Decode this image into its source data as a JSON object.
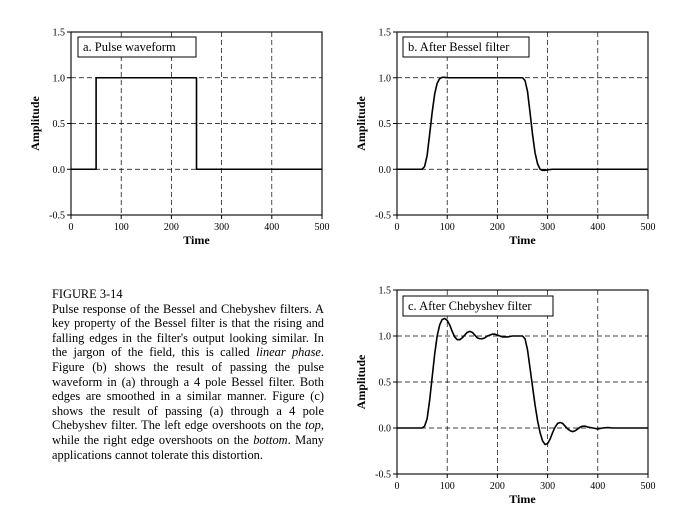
{
  "caption": {
    "figure_label": "FIGURE 3-14",
    "segments": [
      {
        "t": "Pulse response of the Bessel and Chebyshev filters. A key property of the Bessel filter is that the rising and falling edges in the filter's output looking similar. In the jargon of the field, this is called "
      },
      {
        "t": "linear phase",
        "i": true
      },
      {
        "t": ".  Figure (b) shows the result of passing the pulse waveform in (a) through a 4 pole Bessel filter.  Both edges are smoothed in a similar manner.  Figure (c) shows the result of passing (a) through a 4 pole Chebyshev filter. The left edge overshoots on the "
      },
      {
        "t": "top",
        "i": true
      },
      {
        "t": ", while the right edge overshoots on the "
      },
      {
        "t": "bottom",
        "i": true
      },
      {
        "t": ". Many applications cannot tolerate this distortion."
      }
    ]
  },
  "chart_data": [
    {
      "type": "line",
      "title": "a.  Pulse waveform",
      "xlabel": "Time",
      "ylabel": "Amplitude",
      "xlim": [
        0,
        500
      ],
      "ylim": [
        -0.5,
        1.5
      ],
      "xticks": [
        "0",
        "100",
        "200",
        "300",
        "400",
        "500"
      ],
      "yticks": [
        "-0.5",
        "0.0",
        "0.5",
        "1.0",
        "1.5"
      ],
      "grid": true,
      "series": [
        {
          "x": [
            0,
            50,
            50,
            250,
            250,
            500
          ],
          "y": [
            0,
            0,
            1,
            1,
            0,
            0
          ]
        }
      ]
    },
    {
      "type": "line",
      "title": "b.  After Bessel filter",
      "xlabel": "Time",
      "ylabel": "Amplitude",
      "xlim": [
        0,
        500
      ],
      "ylim": [
        -0.5,
        1.5
      ],
      "xticks": [
        "0",
        "100",
        "200",
        "300",
        "400",
        "500"
      ],
      "yticks": [
        "-0.5",
        "0.0",
        "0.5",
        "1.0",
        "1.5"
      ],
      "grid": true,
      "series": [
        {
          "x": [
            0,
            50,
            55,
            60,
            65,
            70,
            75,
            80,
            85,
            90,
            95,
            100,
            105,
            110,
            250,
            255,
            260,
            265,
            270,
            275,
            280,
            285,
            290,
            295,
            300,
            310,
            320,
            500
          ],
          "y": [
            0,
            0,
            0.03,
            0.15,
            0.38,
            0.62,
            0.82,
            0.94,
            0.99,
            1.005,
            1.005,
            1.0,
            1.0,
            1.0,
            1.0,
            0.97,
            0.85,
            0.62,
            0.38,
            0.18,
            0.06,
            0.0,
            -0.012,
            -0.012,
            -0.006,
            0,
            0,
            0
          ]
        }
      ]
    },
    {
      "type": "line",
      "title": "c.  After Chebyshev filter",
      "xlabel": "Time",
      "ylabel": "Amplitude",
      "xlim": [
        0,
        500
      ],
      "ylim": [
        -0.5,
        1.5
      ],
      "xticks": [
        "0",
        "100",
        "200",
        "300",
        "400",
        "500"
      ],
      "yticks": [
        "-0.5",
        "0.0",
        "0.5",
        "1.0",
        "1.5"
      ],
      "grid": true,
      "series": [
        {
          "x": [
            0,
            50,
            55,
            60,
            65,
            70,
            75,
            80,
            85,
            90,
            95,
            100,
            105,
            110,
            115,
            120,
            125,
            130,
            135,
            140,
            145,
            150,
            155,
            160,
            165,
            170,
            175,
            180,
            185,
            190,
            195,
            200,
            210,
            220,
            230,
            240,
            250,
            255,
            260,
            265,
            270,
            275,
            280,
            285,
            290,
            295,
            300,
            305,
            310,
            315,
            320,
            325,
            330,
            335,
            340,
            345,
            350,
            355,
            360,
            365,
            370,
            375,
            380,
            390,
            400,
            410,
            420,
            430,
            440,
            450,
            460,
            470,
            480,
            490,
            500
          ],
          "y": [
            0,
            0,
            0.02,
            0.1,
            0.3,
            0.55,
            0.8,
            1.0,
            1.12,
            1.18,
            1.19,
            1.17,
            1.12,
            1.05,
            0.99,
            0.96,
            0.96,
            0.98,
            1.01,
            1.04,
            1.05,
            1.04,
            1.01,
            0.98,
            0.97,
            0.97,
            0.98,
            1.0,
            1.01,
            1.02,
            1.02,
            1.01,
            0.99,
            0.99,
            1.0,
            1.0,
            1.0,
            0.97,
            0.85,
            0.65,
            0.45,
            0.25,
            0.08,
            -0.05,
            -0.14,
            -0.18,
            -0.17,
            -0.12,
            -0.05,
            0.01,
            0.05,
            0.06,
            0.05,
            0.02,
            -0.01,
            -0.03,
            -0.04,
            -0.03,
            -0.01,
            0.01,
            0.02,
            0.02,
            0.01,
            0,
            -0.01,
            0,
            0.005,
            0,
            0,
            0,
            0,
            0,
            0,
            0,
            0
          ]
        }
      ]
    }
  ]
}
